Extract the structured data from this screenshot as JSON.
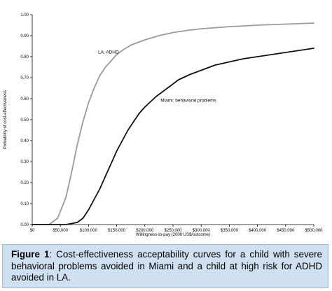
{
  "chart_data": {
    "type": "line",
    "xlabel": "Willingness-to-pay (2008 US$/outcome)",
    "ylabel": "Probability of cost-effectiveness",
    "xlim": [
      0,
      500000
    ],
    "ylim": [
      0,
      1
    ],
    "x_ticks": [
      0,
      50000,
      100000,
      150000,
      200000,
      250000,
      300000,
      350000,
      400000,
      450000,
      500000
    ],
    "x_tick_labels": [
      "$0",
      "$50,000",
      "$100,000",
      "$150,000",
      "$200,000",
      "$250,000",
      "$300,000",
      "$350,000",
      "$400,000",
      "$450,000",
      "$500,000"
    ],
    "y_ticks": [
      0,
      0.1,
      0.2,
      0.3,
      0.4,
      0.5,
      0.6,
      0.7,
      0.8,
      0.9,
      1.0
    ],
    "y_tick_labels": [
      "0.00",
      "0.10",
      "0.20",
      "0.30",
      "0.40",
      "0.50",
      "0.60",
      "0.70",
      "0.80",
      "0.90",
      "1.00"
    ],
    "grid": false,
    "series": [
      {
        "name": "LA: ADHD",
        "color": "#9a9a9a",
        "x": [
          0,
          30000,
          45000,
          60000,
          70000,
          80000,
          90000,
          100000,
          110000,
          120000,
          130000,
          140000,
          150000,
          160000,
          175000,
          190000,
          200000,
          225000,
          250000,
          275000,
          300000,
          350000,
          400000,
          450000,
          500000
        ],
        "y": [
          0,
          0,
          0.03,
          0.13,
          0.25,
          0.38,
          0.49,
          0.58,
          0.65,
          0.71,
          0.75,
          0.78,
          0.81,
          0.83,
          0.855,
          0.87,
          0.88,
          0.9,
          0.915,
          0.925,
          0.933,
          0.943,
          0.95,
          0.955,
          0.96
        ]
      },
      {
        "name": "Miami: behavioral problems",
        "color": "#111111",
        "x": [
          0,
          40000,
          60000,
          80000,
          90000,
          100000,
          110000,
          120000,
          130000,
          140000,
          150000,
          160000,
          170000,
          180000,
          190000,
          200000,
          220000,
          240000,
          260000,
          280000,
          300000,
          325000,
          350000,
          375000,
          400000,
          425000,
          450000,
          475000,
          500000
        ],
        "y": [
          0,
          0,
          0,
          0.01,
          0.03,
          0.07,
          0.12,
          0.17,
          0.23,
          0.29,
          0.35,
          0.4,
          0.45,
          0.49,
          0.53,
          0.56,
          0.61,
          0.65,
          0.69,
          0.715,
          0.735,
          0.76,
          0.775,
          0.79,
          0.8,
          0.81,
          0.82,
          0.83,
          0.84
        ]
      }
    ],
    "annotations": [
      {
        "text": "LA: ADHD",
        "x": 117000,
        "y": 0.815
      },
      {
        "text": "Miami: behavioral problems",
        "x": 228000,
        "y": 0.585
      }
    ]
  },
  "caption": {
    "label": "Figure 1",
    "text": ": Cost-effectiveness acceptability curves for a child with severe behavioral problems avoided in Miami and a child at high risk for ADHD avoided in LA."
  }
}
